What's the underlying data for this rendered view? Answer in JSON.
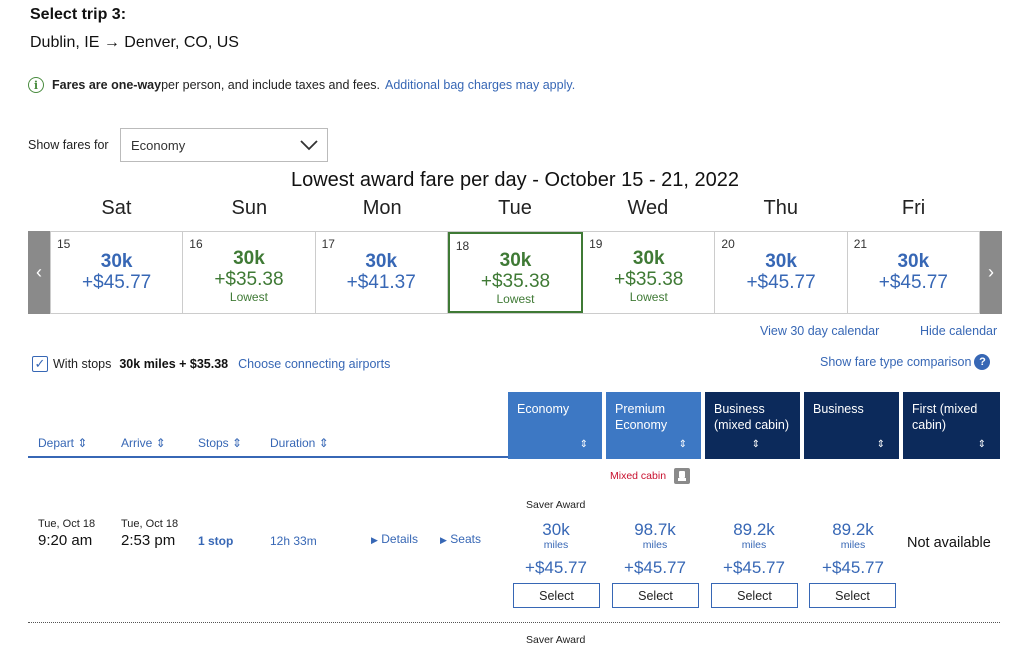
{
  "header": {
    "title": "Select trip 3:",
    "route": "Dublin, IE → Denver, CO, US"
  },
  "info": {
    "bold": "Fares are one-way",
    "text": " per person, and include taxes and fees.",
    "link": "Additional bag charges may apply."
  },
  "fare_filter": {
    "label": "Show fares for",
    "selected": "Economy"
  },
  "calendar": {
    "title": "Lowest award fare per day - October 15 - 21, 2022",
    "days": [
      {
        "name": "Sat",
        "num": "15",
        "miles": "30k",
        "price": "+$45.77",
        "lowest": ""
      },
      {
        "name": "Sun",
        "num": "16",
        "miles": "30k",
        "price": "+$35.38",
        "lowest": "Lowest"
      },
      {
        "name": "Mon",
        "num": "17",
        "miles": "30k",
        "price": "+$41.37",
        "lowest": ""
      },
      {
        "name": "Tue",
        "num": "18",
        "miles": "30k",
        "price": "+$35.38",
        "lowest": "Lowest"
      },
      {
        "name": "Wed",
        "num": "19",
        "miles": "30k",
        "price": "+$35.38",
        "lowest": "Lowest"
      },
      {
        "name": "Thu",
        "num": "20",
        "miles": "30k",
        "price": "+$45.77",
        "lowest": ""
      },
      {
        "name": "Fri",
        "num": "21",
        "miles": "30k",
        "price": "+$45.77",
        "lowest": ""
      }
    ],
    "view30": "View 30 day calendar",
    "hide": "Hide calendar",
    "colors": {
      "accent": "#3767b5",
      "lowest": "#3f7a35",
      "nav": "#8a8a8a"
    }
  },
  "filters": {
    "with_stops": "With stops",
    "with_stops_checked": true,
    "summary": "30k miles + $35.38",
    "choose": "Choose connecting airports",
    "compare": "Show fare type comparison"
  },
  "columns": {
    "depart": "Depart",
    "arrive": "Arrive",
    "stops": "Stops",
    "duration": "Duration",
    "cabins": [
      {
        "label": "Economy",
        "color": "#3d78c4"
      },
      {
        "label": "Premium Economy",
        "color": "#3d78c4"
      },
      {
        "label": "Business (mixed cabin)",
        "color": "#0c2a5b"
      },
      {
        "label": "Business",
        "color": "#0c2a5b"
      },
      {
        "label": "First (mixed cabin)",
        "color": "#0c2a5b"
      }
    ]
  },
  "flight": {
    "mixed_cabin": "Mixed cabin",
    "saver": "Saver Award",
    "depart_date": "Tue, Oct 18",
    "depart_time": "9:20 am",
    "arrive_date": "Tue, Oct 18",
    "arrive_time": "2:53 pm",
    "stops": "1 stop",
    "duration": "12h 33m",
    "details": "Details",
    "seats": "Seats",
    "fares": [
      {
        "miles": "30k",
        "unit": "miles",
        "price": "+$45.77",
        "button": "Select"
      },
      {
        "miles": "98.7k",
        "unit": "miles",
        "price": "+$45.77",
        "button": "Select"
      },
      {
        "miles": "89.2k",
        "unit": "miles",
        "price": "+$45.77",
        "button": "Select"
      },
      {
        "miles": "89.2k",
        "unit": "miles",
        "price": "+$45.77",
        "button": "Select"
      }
    ],
    "not_available": "Not available"
  },
  "next_row": {
    "saver": "Saver Award"
  }
}
